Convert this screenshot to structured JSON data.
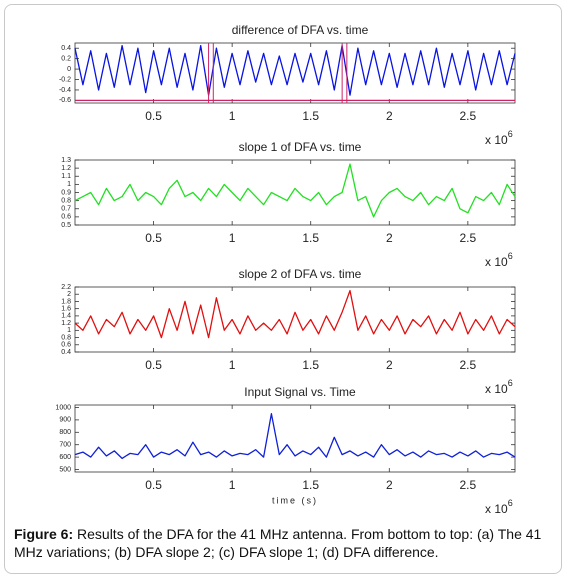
{
  "chart_data": [
    {
      "type": "line",
      "title": "difference  of DFA vs. time",
      "x": [
        0,
        0.05,
        0.1,
        0.15,
        0.2,
        0.25,
        0.3,
        0.35,
        0.4,
        0.45,
        0.5,
        0.55,
        0.6,
        0.65,
        0.7,
        0.75,
        0.8,
        0.85,
        0.9,
        0.95,
        1,
        1.05,
        1.1,
        1.15,
        1.2,
        1.25,
        1.3,
        1.35,
        1.4,
        1.45,
        1.5,
        1.55,
        1.6,
        1.65,
        1.7,
        1.75,
        1.8,
        1.85,
        1.9,
        1.95,
        2,
        2.05,
        2.1,
        2.15,
        2.2,
        2.25,
        2.3,
        2.35,
        2.4,
        2.45,
        2.5,
        2.55,
        2.6,
        2.65,
        2.7,
        2.75,
        2.8
      ],
      "series": [
        {
          "color": "#0a14e0",
          "values": [
            0.4,
            -0.3,
            0.35,
            -0.4,
            0.3,
            -0.35,
            0.45,
            -0.3,
            0.4,
            -0.45,
            0.35,
            -0.3,
            0.4,
            -0.35,
            0.3,
            -0.4,
            0.45,
            -0.5,
            0.4,
            -0.35,
            0.3,
            -0.3,
            0.35,
            -0.25,
            0.3,
            -0.3,
            0.25,
            -0.3,
            0.3,
            -0.25,
            0.3,
            -0.3,
            0.35,
            -0.4,
            0.45,
            -0.5,
            0.4,
            -0.3,
            0.35,
            -0.3,
            0.3,
            -0.35,
            0.3,
            -0.3,
            0.35,
            -0.3,
            0.4,
            -0.35,
            0.3,
            -0.3,
            0.35,
            -0.4,
            0.3,
            -0.3,
            0.35,
            -0.3,
            0.3
          ]
        }
      ],
      "reference_lines": {
        "y": [
          -0.6
        ],
        "x": [
          0.85,
          0.88,
          1.7,
          1.73
        ],
        "color": "#cc2266"
      },
      "xlim": [
        0,
        2.8
      ],
      "ylim": [
        -0.65,
        0.5
      ],
      "xticks": [
        0.5,
        1,
        1.5,
        2,
        2.5
      ],
      "yticks": [
        0.4,
        0.2,
        0,
        -0.2,
        -0.4,
        -0.6
      ],
      "x_scale_label": "x 10",
      "x_scale_exponent": "6"
    },
    {
      "type": "line",
      "title": "slope 1 of DFA vs. time",
      "x": [
        0,
        0.05,
        0.1,
        0.15,
        0.2,
        0.25,
        0.3,
        0.35,
        0.4,
        0.45,
        0.5,
        0.55,
        0.6,
        0.65,
        0.7,
        0.75,
        0.8,
        0.85,
        0.9,
        0.95,
        1,
        1.05,
        1.1,
        1.15,
        1.2,
        1.25,
        1.3,
        1.35,
        1.4,
        1.45,
        1.5,
        1.55,
        1.6,
        1.65,
        1.7,
        1.75,
        1.8,
        1.85,
        1.9,
        1.95,
        2,
        2.05,
        2.1,
        2.15,
        2.2,
        2.25,
        2.3,
        2.35,
        2.4,
        2.45,
        2.5,
        2.55,
        2.6,
        2.65,
        2.7,
        2.75,
        2.8
      ],
      "series": [
        {
          "color": "#22e022",
          "values": [
            0.8,
            0.85,
            0.9,
            0.75,
            0.95,
            0.8,
            0.85,
            1.0,
            0.8,
            0.9,
            0.85,
            0.75,
            0.95,
            1.05,
            0.85,
            0.9,
            0.8,
            0.95,
            0.85,
            1.0,
            0.9,
            0.8,
            0.95,
            0.85,
            0.75,
            0.9,
            0.85,
            0.8,
            0.95,
            0.85,
            0.8,
            0.9,
            0.75,
            0.85,
            0.9,
            1.25,
            0.8,
            0.85,
            0.6,
            0.8,
            0.9,
            0.95,
            0.85,
            0.8,
            0.9,
            0.75,
            0.85,
            0.8,
            0.95,
            0.7,
            0.65,
            0.85,
            0.8,
            0.9,
            0.75,
            1.0,
            0.85
          ]
        }
      ],
      "xlim": [
        0,
        2.8
      ],
      "ylim": [
        0.5,
        1.3
      ],
      "xticks": [
        0.5,
        1,
        1.5,
        2,
        2.5
      ],
      "yticks": [
        1.3,
        1.2,
        1.1,
        1,
        0.9,
        0.8,
        0.7,
        0.6,
        0.5
      ],
      "x_scale_label": "x 10",
      "x_scale_exponent": "6"
    },
    {
      "type": "line",
      "title": "slope 2 of DFA vs. time",
      "x": [
        0,
        0.05,
        0.1,
        0.15,
        0.2,
        0.25,
        0.3,
        0.35,
        0.4,
        0.45,
        0.5,
        0.55,
        0.6,
        0.65,
        0.7,
        0.75,
        0.8,
        0.85,
        0.9,
        0.95,
        1,
        1.05,
        1.1,
        1.15,
        1.2,
        1.25,
        1.3,
        1.35,
        1.4,
        1.45,
        1.5,
        1.55,
        1.6,
        1.65,
        1.7,
        1.75,
        1.8,
        1.85,
        1.9,
        1.95,
        2,
        2.05,
        2.1,
        2.15,
        2.2,
        2.25,
        2.3,
        2.35,
        2.4,
        2.45,
        2.5,
        2.55,
        2.6,
        2.65,
        2.7,
        2.75,
        2.8
      ],
      "series": [
        {
          "color": "#e01010",
          "values": [
            1.2,
            1.0,
            1.4,
            0.9,
            1.3,
            1.1,
            1.5,
            0.9,
            1.3,
            1.0,
            1.4,
            0.8,
            1.6,
            1.0,
            1.8,
            0.9,
            1.7,
            0.8,
            1.9,
            1.0,
            1.3,
            0.9,
            1.4,
            1.0,
            1.2,
            1.0,
            1.3,
            0.9,
            1.5,
            1.0,
            1.3,
            0.9,
            1.4,
            1.0,
            1.5,
            2.1,
            1.0,
            1.4,
            0.9,
            1.3,
            1.0,
            1.4,
            0.9,
            1.3,
            1.1,
            1.4,
            0.9,
            1.3,
            1.0,
            1.5,
            0.9,
            1.3,
            1.0,
            1.4,
            0.9,
            1.3,
            1.1
          ]
        }
      ],
      "xlim": [
        0,
        2.8
      ],
      "ylim": [
        0.4,
        2.2
      ],
      "xticks": [
        0.5,
        1,
        1.5,
        2,
        2.5
      ],
      "yticks": [
        2.2,
        2,
        1.8,
        1.6,
        1.4,
        1.2,
        1,
        0.8,
        0.6,
        0.4
      ],
      "x_scale_label": "x 10",
      "x_scale_exponent": "6"
    },
    {
      "type": "line",
      "title": "Input Signal vs. Time",
      "xlabel": "time (s)",
      "x": [
        0,
        0.05,
        0.1,
        0.15,
        0.2,
        0.25,
        0.3,
        0.35,
        0.4,
        0.45,
        0.5,
        0.55,
        0.6,
        0.65,
        0.7,
        0.75,
        0.8,
        0.85,
        0.9,
        0.95,
        1,
        1.05,
        1.1,
        1.15,
        1.2,
        1.25,
        1.3,
        1.35,
        1.4,
        1.45,
        1.5,
        1.55,
        1.6,
        1.65,
        1.7,
        1.75,
        1.8,
        1.85,
        1.9,
        1.95,
        2,
        2.05,
        2.1,
        2.15,
        2.2,
        2.25,
        2.3,
        2.35,
        2.4,
        2.45,
        2.5,
        2.55,
        2.6,
        2.65,
        2.7,
        2.75,
        2.8
      ],
      "series": [
        {
          "color": "#1020d8",
          "values": [
            620,
            640,
            600,
            680,
            610,
            650,
            590,
            630,
            620,
            700,
            600,
            640,
            620,
            660,
            610,
            720,
            620,
            640,
            600,
            650,
            610,
            630,
            620,
            660,
            600,
            950,
            620,
            700,
            610,
            650,
            620,
            680,
            600,
            760,
            620,
            650,
            610,
            640,
            600,
            700,
            620,
            660,
            610,
            640,
            600,
            650,
            620,
            630,
            600,
            640,
            610,
            650,
            600,
            630,
            620,
            640,
            600
          ]
        }
      ],
      "xlim": [
        0,
        2.8
      ],
      "ylim": [
        480,
        1020
      ],
      "xticks": [
        0.5,
        1,
        1.5,
        2,
        2.5
      ],
      "yticks": [
        1000,
        900,
        800,
        700,
        600,
        500
      ],
      "x_scale_label": "x 10",
      "x_scale_exponent": "6"
    }
  ],
  "caption": {
    "label": "Figure 6:",
    "text": " Results of the DFA for the 41 MHz antenna. From bottom to top: (a) The 41 MHz variations; (b) DFA slope 2; (c) DFA slope 1; (d) DFA difference."
  }
}
